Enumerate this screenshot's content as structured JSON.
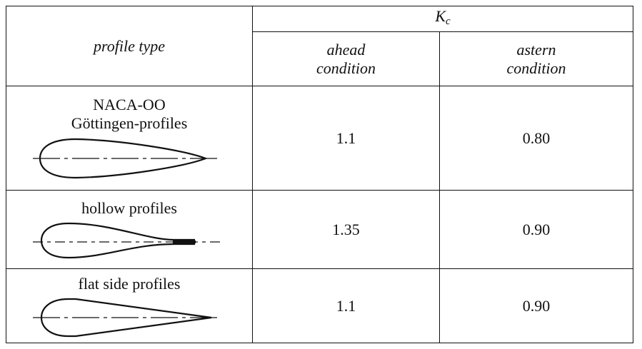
{
  "header": {
    "profile_type": "profile type",
    "kc_symbol": "K",
    "kc_subscript": "c",
    "ahead": [
      "ahead",
      "condition"
    ],
    "astern": [
      "astern",
      "condition"
    ]
  },
  "rows": [
    {
      "name_lines": [
        "NACA-OO",
        "Göttingen-profiles"
      ],
      "ahead": "1.1",
      "astern": "0.80",
      "icon": "naca-profile-icon"
    },
    {
      "name_lines": [
        "hollow profiles"
      ],
      "ahead": "1.35",
      "astern": "0.90",
      "icon": "hollow-profile-icon"
    },
    {
      "name_lines": [
        "flat side profiles"
      ],
      "ahead": "1.1",
      "astern": "0.90",
      "icon": "flat-side-profile-icon"
    }
  ]
}
